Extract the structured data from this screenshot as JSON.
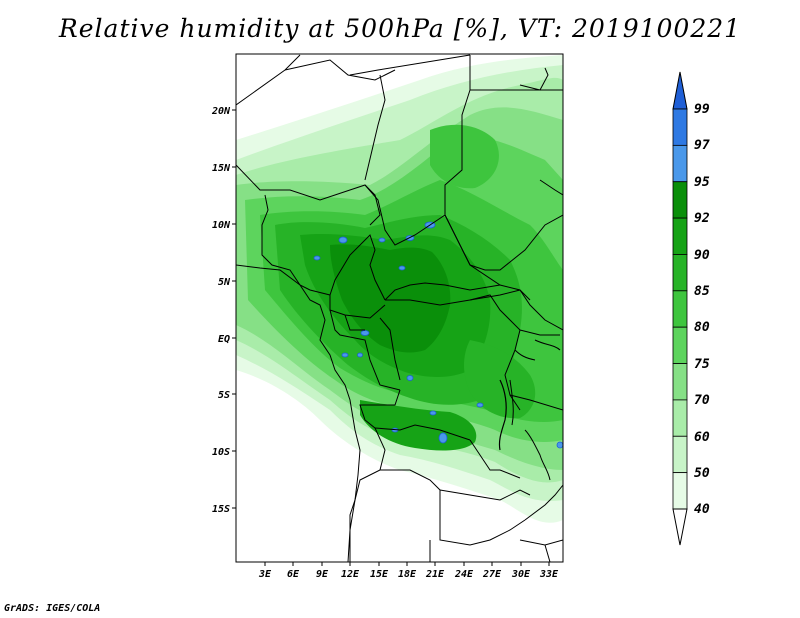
{
  "title": "Relative humidity at 500hPa [%], VT: 2019100221",
  "credit": "GrADS: IGES/COLA",
  "map": {
    "region": "Central Africa",
    "lat_labels": [
      "20N",
      "15N",
      "10N",
      "5N",
      "EQ",
      "5S",
      "10S",
      "15S"
    ],
    "lon_labels": [
      "3E",
      "6E",
      "9E",
      "12E",
      "15E",
      "18E",
      "21E",
      "24E",
      "27E",
      "30E",
      "33E"
    ],
    "lat_range": [
      -19.5,
      24.5
    ],
    "lon_range": [
      0.5,
      34.5
    ]
  },
  "colorbar": {
    "levels": [
      "99",
      "97",
      "95",
      "92",
      "90",
      "85",
      "80",
      "75",
      "70",
      "60",
      "50",
      "40"
    ],
    "colors": [
      "#1f5fd6",
      "#2e79e3",
      "#4a98ea",
      "#0a8f0a",
      "#16a316",
      "#27b327",
      "#3ec53e",
      "#5dd45d",
      "#86e086",
      "#a9eca9",
      "#c8f4c8",
      "#e6fbe6"
    ]
  }
}
